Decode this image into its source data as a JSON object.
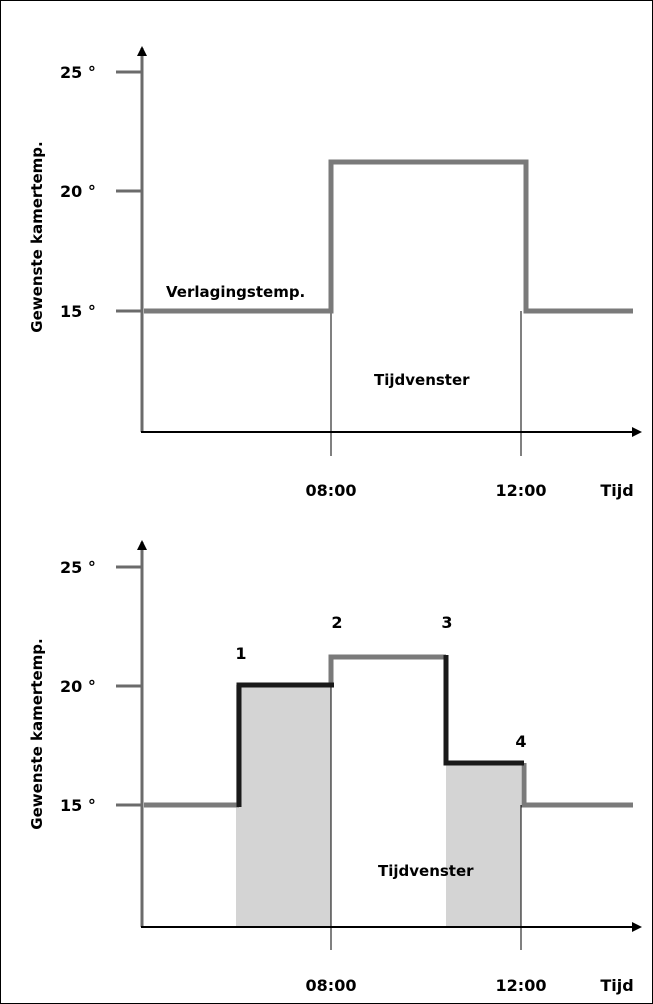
{
  "top": {
    "y_axis_label": "Gewenste kamertemp.",
    "y_ticks": [
      "25 °",
      "20 °",
      "15 °"
    ],
    "x_ticks": [
      "08:00",
      "12:00"
    ],
    "x_axis_label": "Tijd",
    "setback_label": "Verlagingstemp.",
    "window_label": "Tijdvenster"
  },
  "bottom": {
    "y_axis_label": "Gewenste kamertemp.",
    "y_ticks": [
      "25 °",
      "20 °",
      "15 °"
    ],
    "x_ticks": [
      "08:00",
      "12:00"
    ],
    "x_axis_label": "Tijd",
    "window_label": "Tijdvenster",
    "markers": [
      "1",
      "2",
      "3",
      "4"
    ]
  },
  "colors": {
    "axis": "#6b6b6b",
    "profile": "#7a7a7a",
    "adjusted": "#1a1a1a",
    "shade": "#d4d4d4",
    "guide": "#000000"
  }
}
